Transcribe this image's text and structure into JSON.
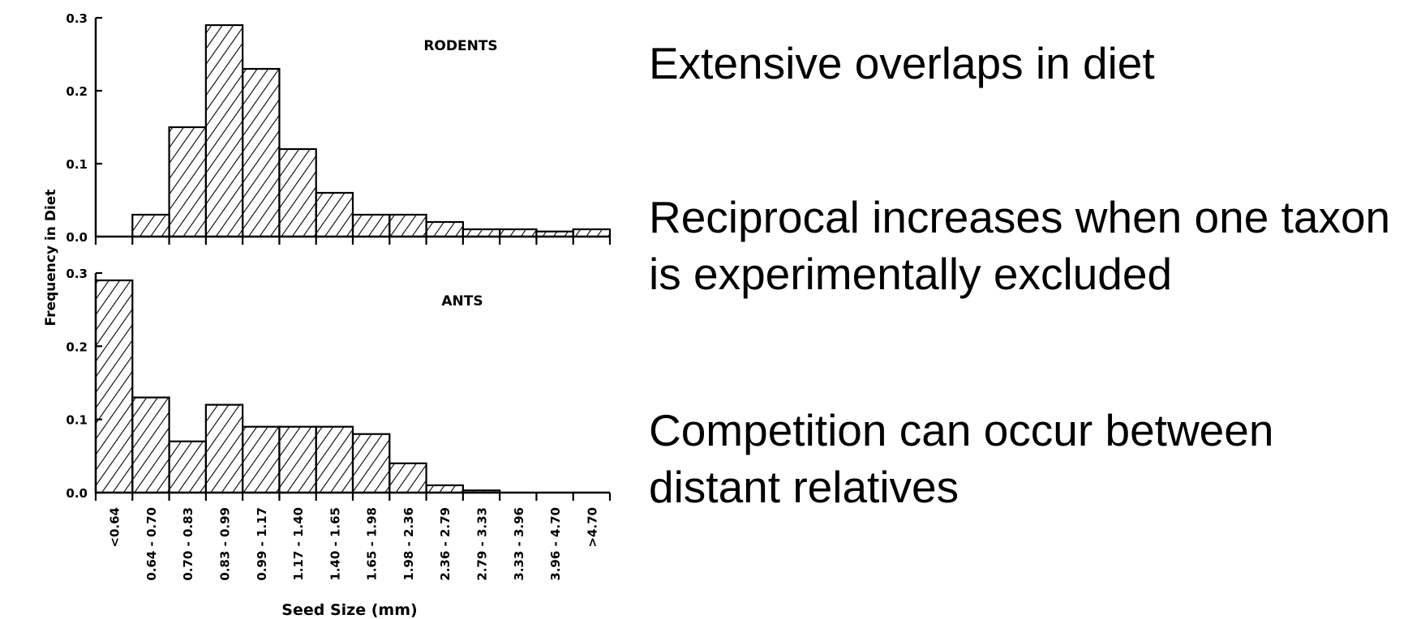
{
  "slide": {
    "bullets": [
      "Extensive overlaps in diet",
      "Reciprocal increases when one taxon is experimentally excluded",
      "Competition can occur between distant relatives"
    ]
  },
  "chart_data": {
    "type": "bar",
    "title": "",
    "xlabel": "Seed Size (mm)",
    "ylabel": "Frequency in Diet",
    "categories": [
      "<0.64",
      "0.64 - 0.70",
      "0.70 - 0.83",
      "0.83 - 0.99",
      "0.99 - 1.17",
      "1.17 - 1.40",
      "1.40 - 1.65",
      "1.65 - 1.98",
      "1.98 - 2.36",
      "2.36 - 2.79",
      "2.79 - 3.33",
      "3.33 - 3.96",
      "3.96 - 4.70",
      ">4.70"
    ],
    "ylim": [
      0,
      0.3
    ],
    "yticks": [
      "0.0",
      "0.1",
      "0.2",
      "0.3"
    ],
    "series": [
      {
        "name": "RODENTS",
        "values": [
          0.0,
          0.03,
          0.15,
          0.29,
          0.23,
          0.12,
          0.06,
          0.03,
          0.03,
          0.02,
          0.01,
          0.01,
          0.007,
          0.01
        ]
      },
      {
        "name": "ANTS",
        "values": [
          0.29,
          0.13,
          0.07,
          0.12,
          0.09,
          0.09,
          0.09,
          0.08,
          0.04,
          0.01,
          0.003,
          0.0,
          0.0,
          0.0
        ]
      }
    ]
  }
}
